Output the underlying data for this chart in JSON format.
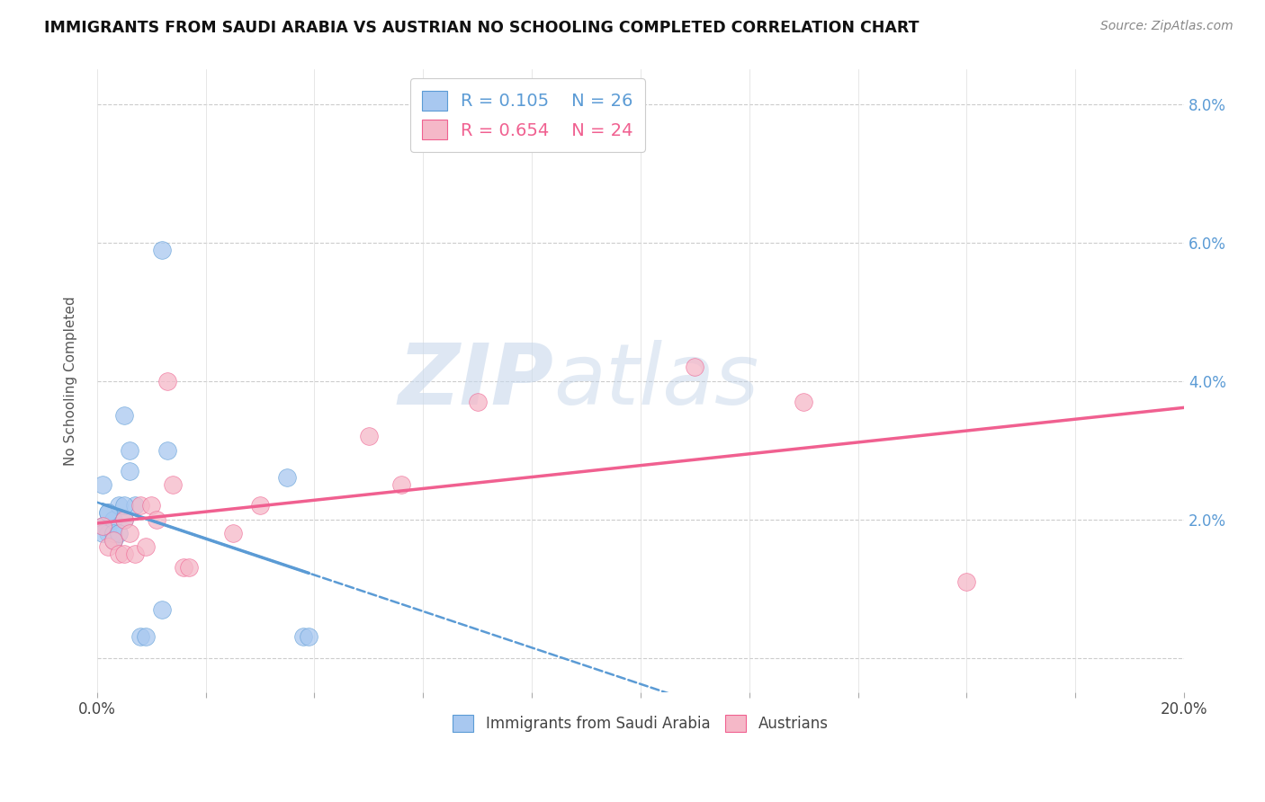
{
  "title": "IMMIGRANTS FROM SAUDI ARABIA VS AUSTRIAN NO SCHOOLING COMPLETED CORRELATION CHART",
  "source": "Source: ZipAtlas.com",
  "ylabel": "No Schooling Completed",
  "xlim": [
    0.0,
    0.2
  ],
  "ylim": [
    -0.005,
    0.085
  ],
  "xticks": [
    0.0,
    0.02,
    0.04,
    0.06,
    0.08,
    0.1,
    0.12,
    0.14,
    0.16,
    0.18,
    0.2
  ],
  "yticks": [
    0.0,
    0.02,
    0.04,
    0.06,
    0.08
  ],
  "ytick_labels_right": [
    "",
    "2.0%",
    "4.0%",
    "6.0%",
    "8.0%"
  ],
  "legend_r1": "R = 0.105",
  "legend_n1": "N = 26",
  "legend_r2": "R = 0.654",
  "legend_n2": "N = 24",
  "color_blue_fill": "#a8c8f0",
  "color_pink_fill": "#f5b8c8",
  "color_blue_line": "#5b9bd5",
  "color_pink_line": "#f06090",
  "watermark_zip": "ZIP",
  "watermark_atlas": "atlas",
  "saudi_x": [
    0.001,
    0.001,
    0.002,
    0.002,
    0.003,
    0.003,
    0.003,
    0.004,
    0.005,
    0.005,
    0.006,
    0.006,
    0.007,
    0.008,
    0.009,
    0.012,
    0.012,
    0.013,
    0.035,
    0.038,
    0.039,
    0.001,
    0.002,
    0.003,
    0.004,
    0.005
  ],
  "saudi_y": [
    0.025,
    0.019,
    0.021,
    0.018,
    0.02,
    0.017,
    0.017,
    0.022,
    0.035,
    0.02,
    0.03,
    0.027,
    0.022,
    0.003,
    0.003,
    0.007,
    0.059,
    0.03,
    0.026,
    0.003,
    0.003,
    0.018,
    0.021,
    0.018,
    0.018,
    0.022
  ],
  "austrian_x": [
    0.001,
    0.002,
    0.003,
    0.004,
    0.005,
    0.005,
    0.006,
    0.007,
    0.008,
    0.009,
    0.01,
    0.011,
    0.013,
    0.014,
    0.016,
    0.017,
    0.025,
    0.03,
    0.05,
    0.056,
    0.07,
    0.11,
    0.13,
    0.16
  ],
  "austrian_y": [
    0.019,
    0.016,
    0.017,
    0.015,
    0.02,
    0.015,
    0.018,
    0.015,
    0.022,
    0.016,
    0.022,
    0.02,
    0.04,
    0.025,
    0.013,
    0.013,
    0.018,
    0.022,
    0.032,
    0.025,
    0.037,
    0.042,
    0.037,
    0.011
  ]
}
